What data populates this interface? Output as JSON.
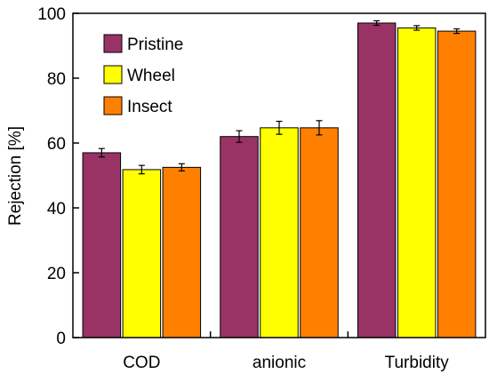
{
  "chart_data": {
    "type": "bar",
    "title": "",
    "xlabel": "",
    "ylabel": "Rejection [%]",
    "ylim": [
      0,
      100
    ],
    "yticks": [
      0,
      20,
      40,
      60,
      80,
      100
    ],
    "categories": [
      "COD",
      "anionic",
      "Turbidity"
    ],
    "legend_position": "top-left",
    "series": [
      {
        "name": "Pristine",
        "color": "#993366",
        "values": [
          57.0,
          62.0,
          97.0
        ],
        "errors": [
          1.3,
          1.8,
          0.7
        ]
      },
      {
        "name": "Wheel",
        "color": "#ffff00",
        "values": [
          51.8,
          64.7,
          95.5
        ],
        "errors": [
          1.3,
          2.0,
          0.7
        ]
      },
      {
        "name": "Insect",
        "color": "#ff8000",
        "values": [
          52.5,
          64.7,
          94.5
        ],
        "errors": [
          1.1,
          2.2,
          0.7
        ]
      }
    ]
  }
}
